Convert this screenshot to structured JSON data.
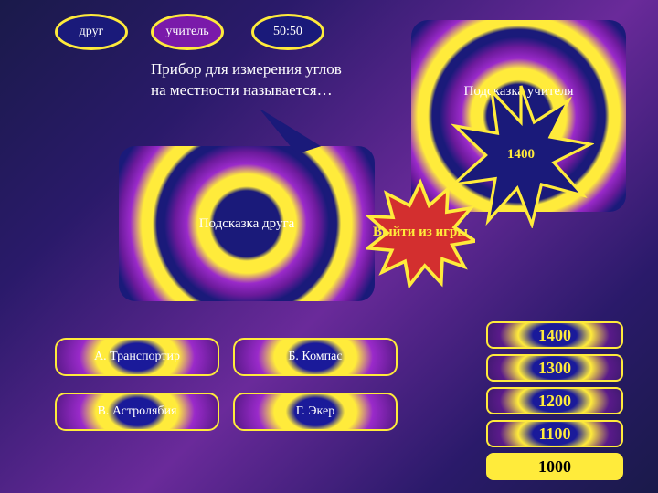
{
  "colors": {
    "yellow": "#ffeb3b",
    "red": "#d32f2f",
    "navy": "#1a1a7a",
    "purple": "#7a1aaa",
    "white": "#ffffff",
    "black": "#000000"
  },
  "lifelines": {
    "friend": {
      "label": "друг",
      "bg": "#1a1a7a"
    },
    "teacher": {
      "label": "учитель",
      "bg": "#7a1aaa"
    },
    "fifty": {
      "label": "50:50",
      "bg": "#1a1a7a"
    }
  },
  "question": "Прибор для измерения углов на местности называется…",
  "hint_friend": "Подсказка друга",
  "hint_teacher": "Подсказка учителя",
  "answers": {
    "a": "А. Транспортир",
    "b": "Б. Компас",
    "c": "В. Астролябия",
    "d": "Г. Экер"
  },
  "exit_label": "Выйти из игры",
  "prize_value": "1400",
  "scores": [
    {
      "value": "1400",
      "current": false
    },
    {
      "value": "1300",
      "current": false
    },
    {
      "value": "1200",
      "current": false
    },
    {
      "value": "1100",
      "current": false
    },
    {
      "value": "1000",
      "current": true
    }
  ],
  "score_top": 352,
  "score_step": 36
}
